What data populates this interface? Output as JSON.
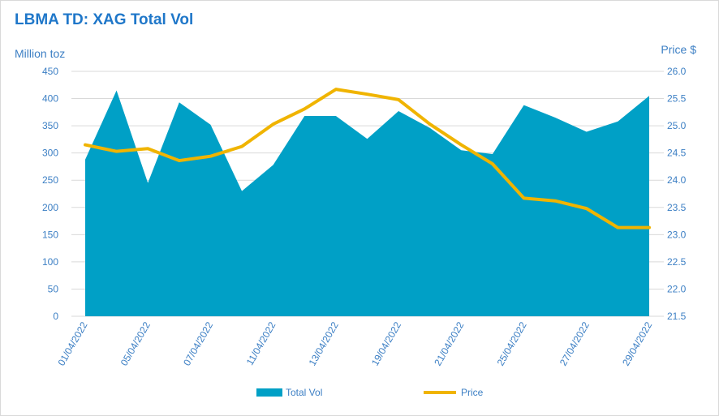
{
  "title": "LBMA TD: XAG Total Vol",
  "ylabel_left": "Million toz",
  "ylabel_right": "Price $",
  "colors": {
    "area": "#00a0c6",
    "line": "#f0b400",
    "grid": "#d9d9d9",
    "text": "#3c7fc4"
  },
  "legend": {
    "area_label": "Total Vol",
    "line_label": "Price"
  },
  "chart_data": {
    "type": "area",
    "x_tick_labels": [
      "01/04/2022",
      "05/04/2022",
      "07/04/2022",
      "11/04/2022",
      "13/04/2022",
      "19/04/2022",
      "21/04/2022",
      "25/04/2022",
      "27/04/2022",
      "29/04/2022"
    ],
    "y_left": {
      "ylim": [
        0,
        450
      ],
      "ticks": [
        0,
        50,
        100,
        150,
        200,
        250,
        300,
        350,
        400,
        450
      ]
    },
    "y_right": {
      "ylim": [
        21.5,
        26.0
      ],
      "ticks": [
        "21.5",
        "22.0",
        "22.5",
        "23.0",
        "23.5",
        "24.0",
        "24.5",
        "25.0",
        "25.5",
        "26.0"
      ]
    },
    "grid": true,
    "legend_position": "bottom",
    "series": [
      {
        "name": "Total Vol",
        "type": "area",
        "axis": "left",
        "values": [
          288,
          415,
          245,
          393,
          352,
          230,
          278,
          368,
          368,
          326,
          377,
          346,
          305,
          298,
          388,
          365,
          339,
          358,
          405
        ]
      },
      {
        "name": "Price",
        "type": "line",
        "axis": "right",
        "values": [
          24.65,
          24.53,
          24.58,
          24.36,
          24.44,
          24.62,
          25.03,
          25.31,
          25.67,
          25.58,
          25.48,
          25.03,
          24.65,
          24.3,
          23.67,
          23.62,
          23.48,
          23.13,
          23.13
        ]
      }
    ]
  }
}
